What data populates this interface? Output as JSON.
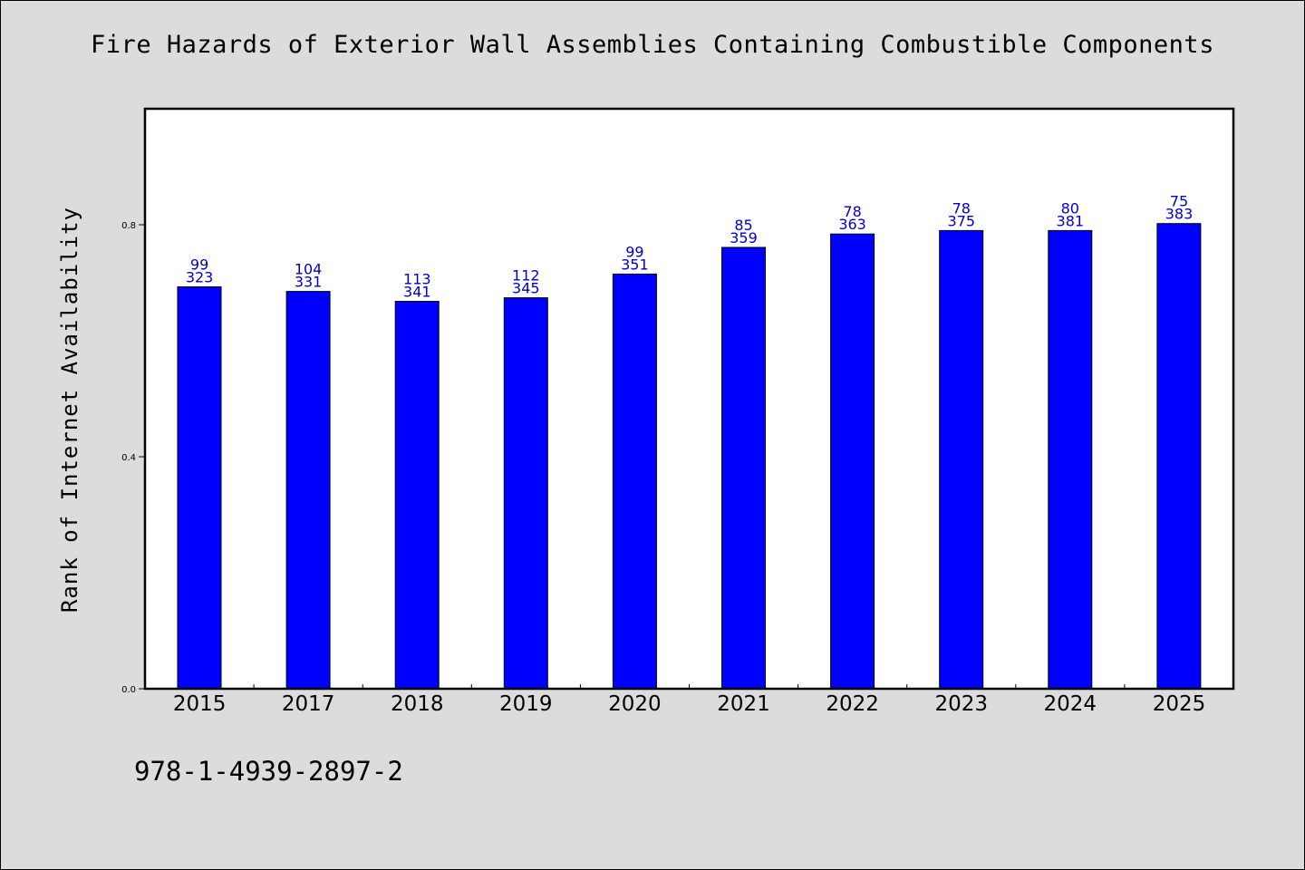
{
  "chart_data": {
    "type": "bar",
    "title": "Fire Hazards of Exterior Wall Assemblies Containing Combustible Components",
    "xlabel": "",
    "ylabel": "Rank of Internet Availability",
    "ylim": [
      0.0,
      1.0
    ],
    "yticks": [
      "0.0",
      "0.4",
      "0.8"
    ],
    "ytick_values": [
      0.0,
      0.4,
      0.8
    ],
    "grid": false,
    "categories": [
      "2015",
      "2017",
      "2018",
      "2019",
      "2020",
      "2021",
      "2022",
      "2023",
      "2024",
      "2025"
    ],
    "values": [
      0.693,
      0.685,
      0.668,
      0.674,
      0.715,
      0.761,
      0.784,
      0.79,
      0.79,
      0.802
    ],
    "label_top": [
      "99",
      "104",
      "113",
      "112",
      "99",
      "85",
      "78",
      "78",
      "80",
      "75"
    ],
    "label_bottom": [
      "323",
      "331",
      "341",
      "345",
      "351",
      "359",
      "363",
      "375",
      "381",
      "383"
    ],
    "bar_color": "#0000ff",
    "label_color": "#0000cc"
  },
  "footer": {
    "isbn": "978-1-4939-2897-2"
  }
}
